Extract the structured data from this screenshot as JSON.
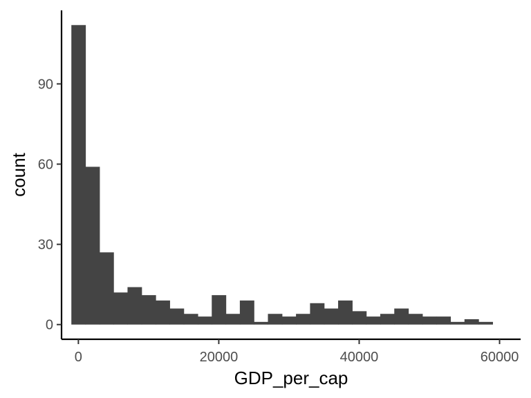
{
  "chart_data": {
    "type": "bar",
    "subtype": "histogram",
    "title": "",
    "xlabel": "GDP_per_cap",
    "ylabel": "count",
    "xlim": [
      -2400,
      63000
    ],
    "ylim": [
      -5.5,
      117.5
    ],
    "bin_width": 2000,
    "bins_x": [
      0,
      2000,
      4000,
      6000,
      8000,
      10000,
      12000,
      14000,
      16000,
      18000,
      20000,
      22000,
      24000,
      26000,
      28000,
      30000,
      32000,
      34000,
      36000,
      38000,
      40000,
      42000,
      44000,
      46000,
      48000,
      50000,
      52000,
      54000,
      56000,
      58000
    ],
    "values": [
      112,
      59,
      27,
      12,
      14,
      11,
      9,
      6,
      4,
      3,
      11,
      4,
      9,
      1,
      4,
      3,
      4,
      8,
      6,
      9,
      5,
      3,
      4,
      6,
      4,
      3,
      3,
      1,
      2,
      1
    ],
    "x_ticks": [
      0,
      20000,
      40000,
      60000
    ],
    "x_tick_labels": [
      "0",
      "20000",
      "40000",
      "60000"
    ],
    "y_ticks": [
      0,
      30,
      60,
      90
    ],
    "y_tick_labels": [
      "0",
      "30",
      "60",
      "90"
    ],
    "bar_color": "#444444",
    "axis_color": "#000000",
    "grid": false,
    "legend": "none"
  }
}
